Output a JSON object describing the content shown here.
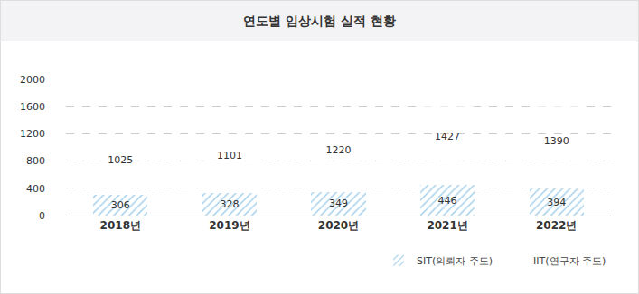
{
  "chart_data": {
    "type": "bar",
    "title": "연도별 임상시험 실적 현황",
    "categories": [
      "2018년",
      "2019년",
      "2020년",
      "2021년",
      "2022년"
    ],
    "series": [
      {
        "name": "SIT(의뢰자 주도)",
        "color": "#c6e2f4",
        "values": [
          306,
          328,
          349,
          446,
          394
        ]
      },
      {
        "name": "IIT(연구자 주도)",
        "color": "#f5ae88",
        "values": [
          1025,
          1101,
          1220,
          1427,
          1390
        ]
      }
    ],
    "ylim": [
      0,
      2000
    ],
    "yticks": [
      0,
      400,
      800,
      1200,
      1600,
      2000
    ],
    "grid": true,
    "stacked": true,
    "data_labels": true,
    "legend": "bottom-right"
  }
}
